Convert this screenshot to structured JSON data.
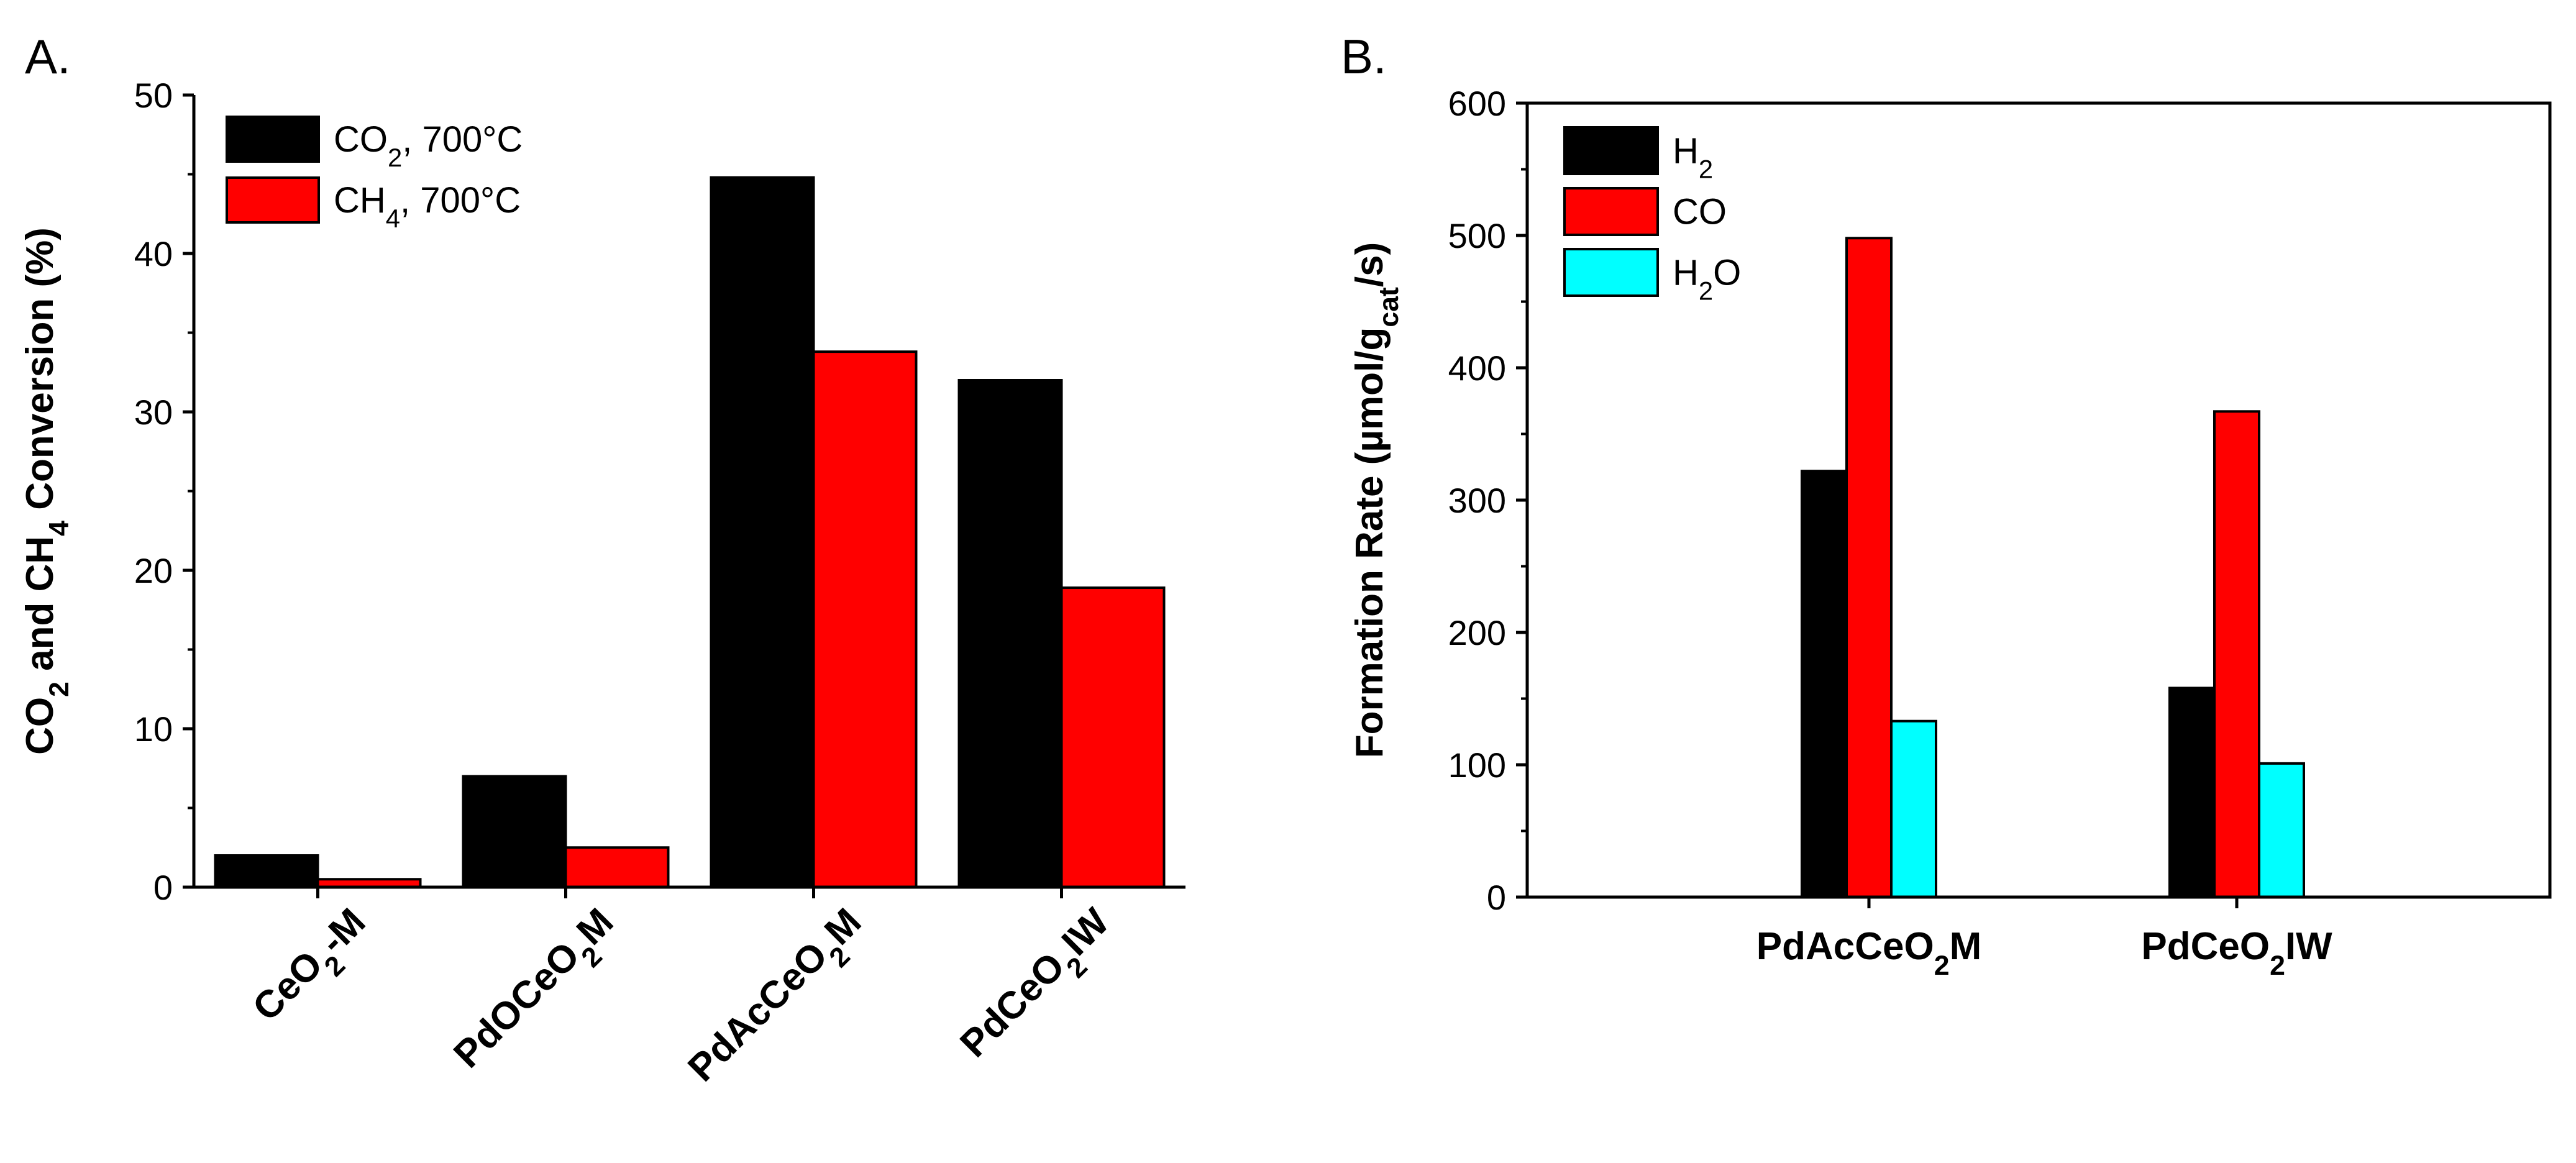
{
  "chart_data": [
    {
      "panel": "A.",
      "type": "bar",
      "title": "",
      "xlabel": "",
      "ylabel": {
        "parts": [
          [
            "CO",
            false
          ],
          [
            "2",
            true
          ],
          [
            " and CH",
            false
          ],
          [
            "4",
            true
          ],
          [
            " Conversion (%)",
            false
          ]
        ]
      },
      "ylim": [
        0,
        50
      ],
      "yticks": [
        0,
        10,
        20,
        30,
        40,
        50
      ],
      "grid": false,
      "legend_position": "top-left",
      "categories": [
        [
          [
            "CeO",
            false
          ],
          [
            "2",
            true
          ],
          [
            "-M",
            false
          ]
        ],
        [
          [
            "PdOCeO",
            false
          ],
          [
            "2",
            true
          ],
          [
            "M",
            false
          ]
        ],
        [
          [
            "PdAcCeO",
            false
          ],
          [
            "2",
            true
          ],
          [
            "M",
            false
          ]
        ],
        [
          [
            "PdCeO",
            false
          ],
          [
            "2",
            true
          ],
          [
            "IW",
            false
          ]
        ]
      ],
      "category_labels": [
        "CeO2-M",
        "PdOCeO2M",
        "PdAcCeO2M",
        "PdCeO2IW"
      ],
      "series": [
        {
          "name": "CO2, 700°C",
          "label": [
            [
              "CO",
              false
            ],
            [
              "2",
              true
            ],
            [
              ", 700°C",
              false
            ]
          ],
          "color": "#000000",
          "values": [
            2.0,
            7.0,
            44.8,
            32.0
          ]
        },
        {
          "name": "CH4, 700°C",
          "label": [
            [
              "CH",
              false
            ],
            [
              "4",
              true
            ],
            [
              ", 700°C",
              false
            ]
          ],
          "color": "#ff0000",
          "values": [
            0.5,
            2.5,
            33.8,
            18.9
          ]
        }
      ]
    },
    {
      "panel": "B.",
      "type": "bar",
      "title": "",
      "xlabel": "",
      "ylabel": {
        "parts": [
          [
            "Formation Rate (µmol/g",
            false
          ],
          [
            "cat",
            true
          ],
          [
            "/s)",
            false
          ]
        ]
      },
      "ylim": [
        0,
        600
      ],
      "yticks": [
        0,
        100,
        200,
        300,
        400,
        500,
        600
      ],
      "grid": false,
      "legend_position": "top-left",
      "categories": [
        [
          [
            "PdAcCeO",
            false
          ],
          [
            "2",
            true
          ],
          [
            "M",
            false
          ]
        ],
        [
          [
            "PdCeO",
            false
          ],
          [
            "2",
            true
          ],
          [
            "IW",
            false
          ]
        ]
      ],
      "category_labels": [
        "PdAcCeO2M",
        "PdCeO2IW"
      ],
      "series": [
        {
          "name": "H2",
          "label": [
            [
              "H",
              false
            ],
            [
              "2",
              true
            ]
          ],
          "color": "#000000",
          "values": [
            322,
            158
          ]
        },
        {
          "name": "CO",
          "label": [
            [
              "CO",
              false
            ]
          ],
          "color": "#ff0000",
          "values": [
            498,
            367
          ]
        },
        {
          "name": "H2O",
          "label": [
            [
              "H",
              false
            ],
            [
              "2",
              true
            ],
            [
              "O",
              false
            ]
          ],
          "color": "#00ffff",
          "values": [
            133,
            101
          ]
        }
      ]
    }
  ]
}
